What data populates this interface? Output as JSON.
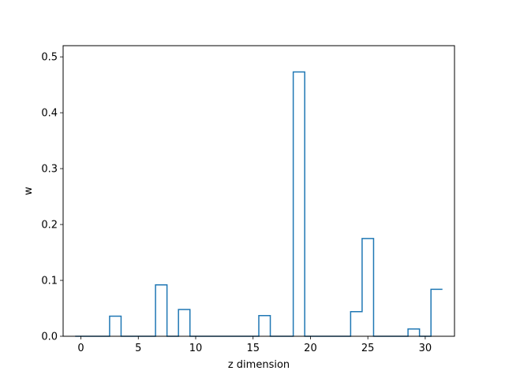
{
  "chart_data": {
    "type": "bar",
    "style": "step-histogram",
    "xlabel": "z dimension",
    "ylabel": "w",
    "xlim": [
      -1.55,
      32.55
    ],
    "ylim": [
      0,
      0.52
    ],
    "x_ticks": [
      0,
      5,
      10,
      15,
      20,
      25,
      30
    ],
    "y_ticks": [
      0.0,
      0.1,
      0.2,
      0.3,
      0.4,
      0.5
    ],
    "x_tick_labels": [
      "0",
      "5",
      "10",
      "15",
      "20",
      "25",
      "30"
    ],
    "y_tick_labels": [
      "0.0",
      "0.1",
      "0.2",
      "0.3",
      "0.4",
      "0.5"
    ],
    "grid": false,
    "color": "#1f77b4",
    "x": [
      0,
      1,
      2,
      3,
      4,
      5,
      6,
      7,
      8,
      9,
      10,
      11,
      12,
      13,
      14,
      15,
      16,
      17,
      18,
      19,
      20,
      21,
      22,
      23,
      24,
      25,
      26,
      27,
      28,
      29,
      30,
      31
    ],
    "values": [
      0,
      0,
      0,
      0.036,
      0,
      0,
      0,
      0.092,
      0,
      0.048,
      0,
      0,
      0,
      0,
      0,
      0,
      0.037,
      0,
      0,
      0.473,
      0,
      0,
      0,
      0,
      0.044,
      0.175,
      0,
      0,
      0,
      0.013,
      0,
      0.084
    ]
  }
}
